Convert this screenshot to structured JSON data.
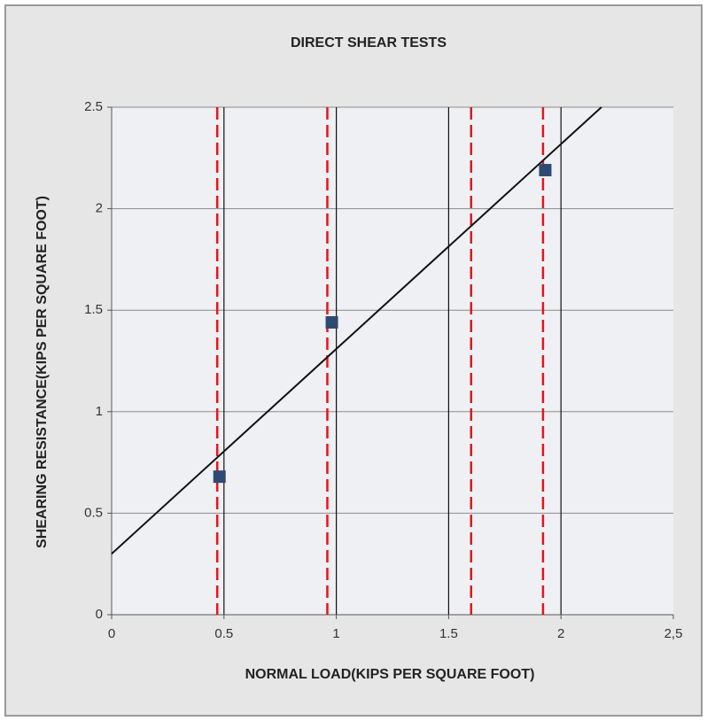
{
  "chart_data": {
    "type": "scatter",
    "title": "DIRECT SHEAR TESTS",
    "x_label": "NORMAL LOAD(KIPS PER SQUARE FOOT)",
    "y_label": "SHEARING RESISTANCE(KIPS PER SQUARE FOOT)",
    "points": {
      "x": [
        0.48,
        0.98,
        1.93
      ],
      "values": [
        0.68,
        1.44,
        2.19
      ],
      "color": "#2f4a72"
    },
    "trendline": {
      "x": [
        0,
        2.18
      ],
      "values": [
        0.3,
        2.5
      ],
      "color": "#111111"
    },
    "reference_lines": {
      "x": [
        0.47,
        0.96,
        1.6,
        1.92
      ],
      "color": "#e8141b",
      "dashed": true
    },
    "xlim": [
      0,
      2.5
    ],
    "ylim": [
      0,
      2.5
    ],
    "xticks": [
      0,
      0.5,
      1,
      1.5,
      2,
      {
        "value": 2.5,
        "label": "2,5"
      }
    ],
    "yticks": [
      0,
      0.5,
      1,
      1.5,
      2,
      2.5
    ],
    "grid": true
  }
}
